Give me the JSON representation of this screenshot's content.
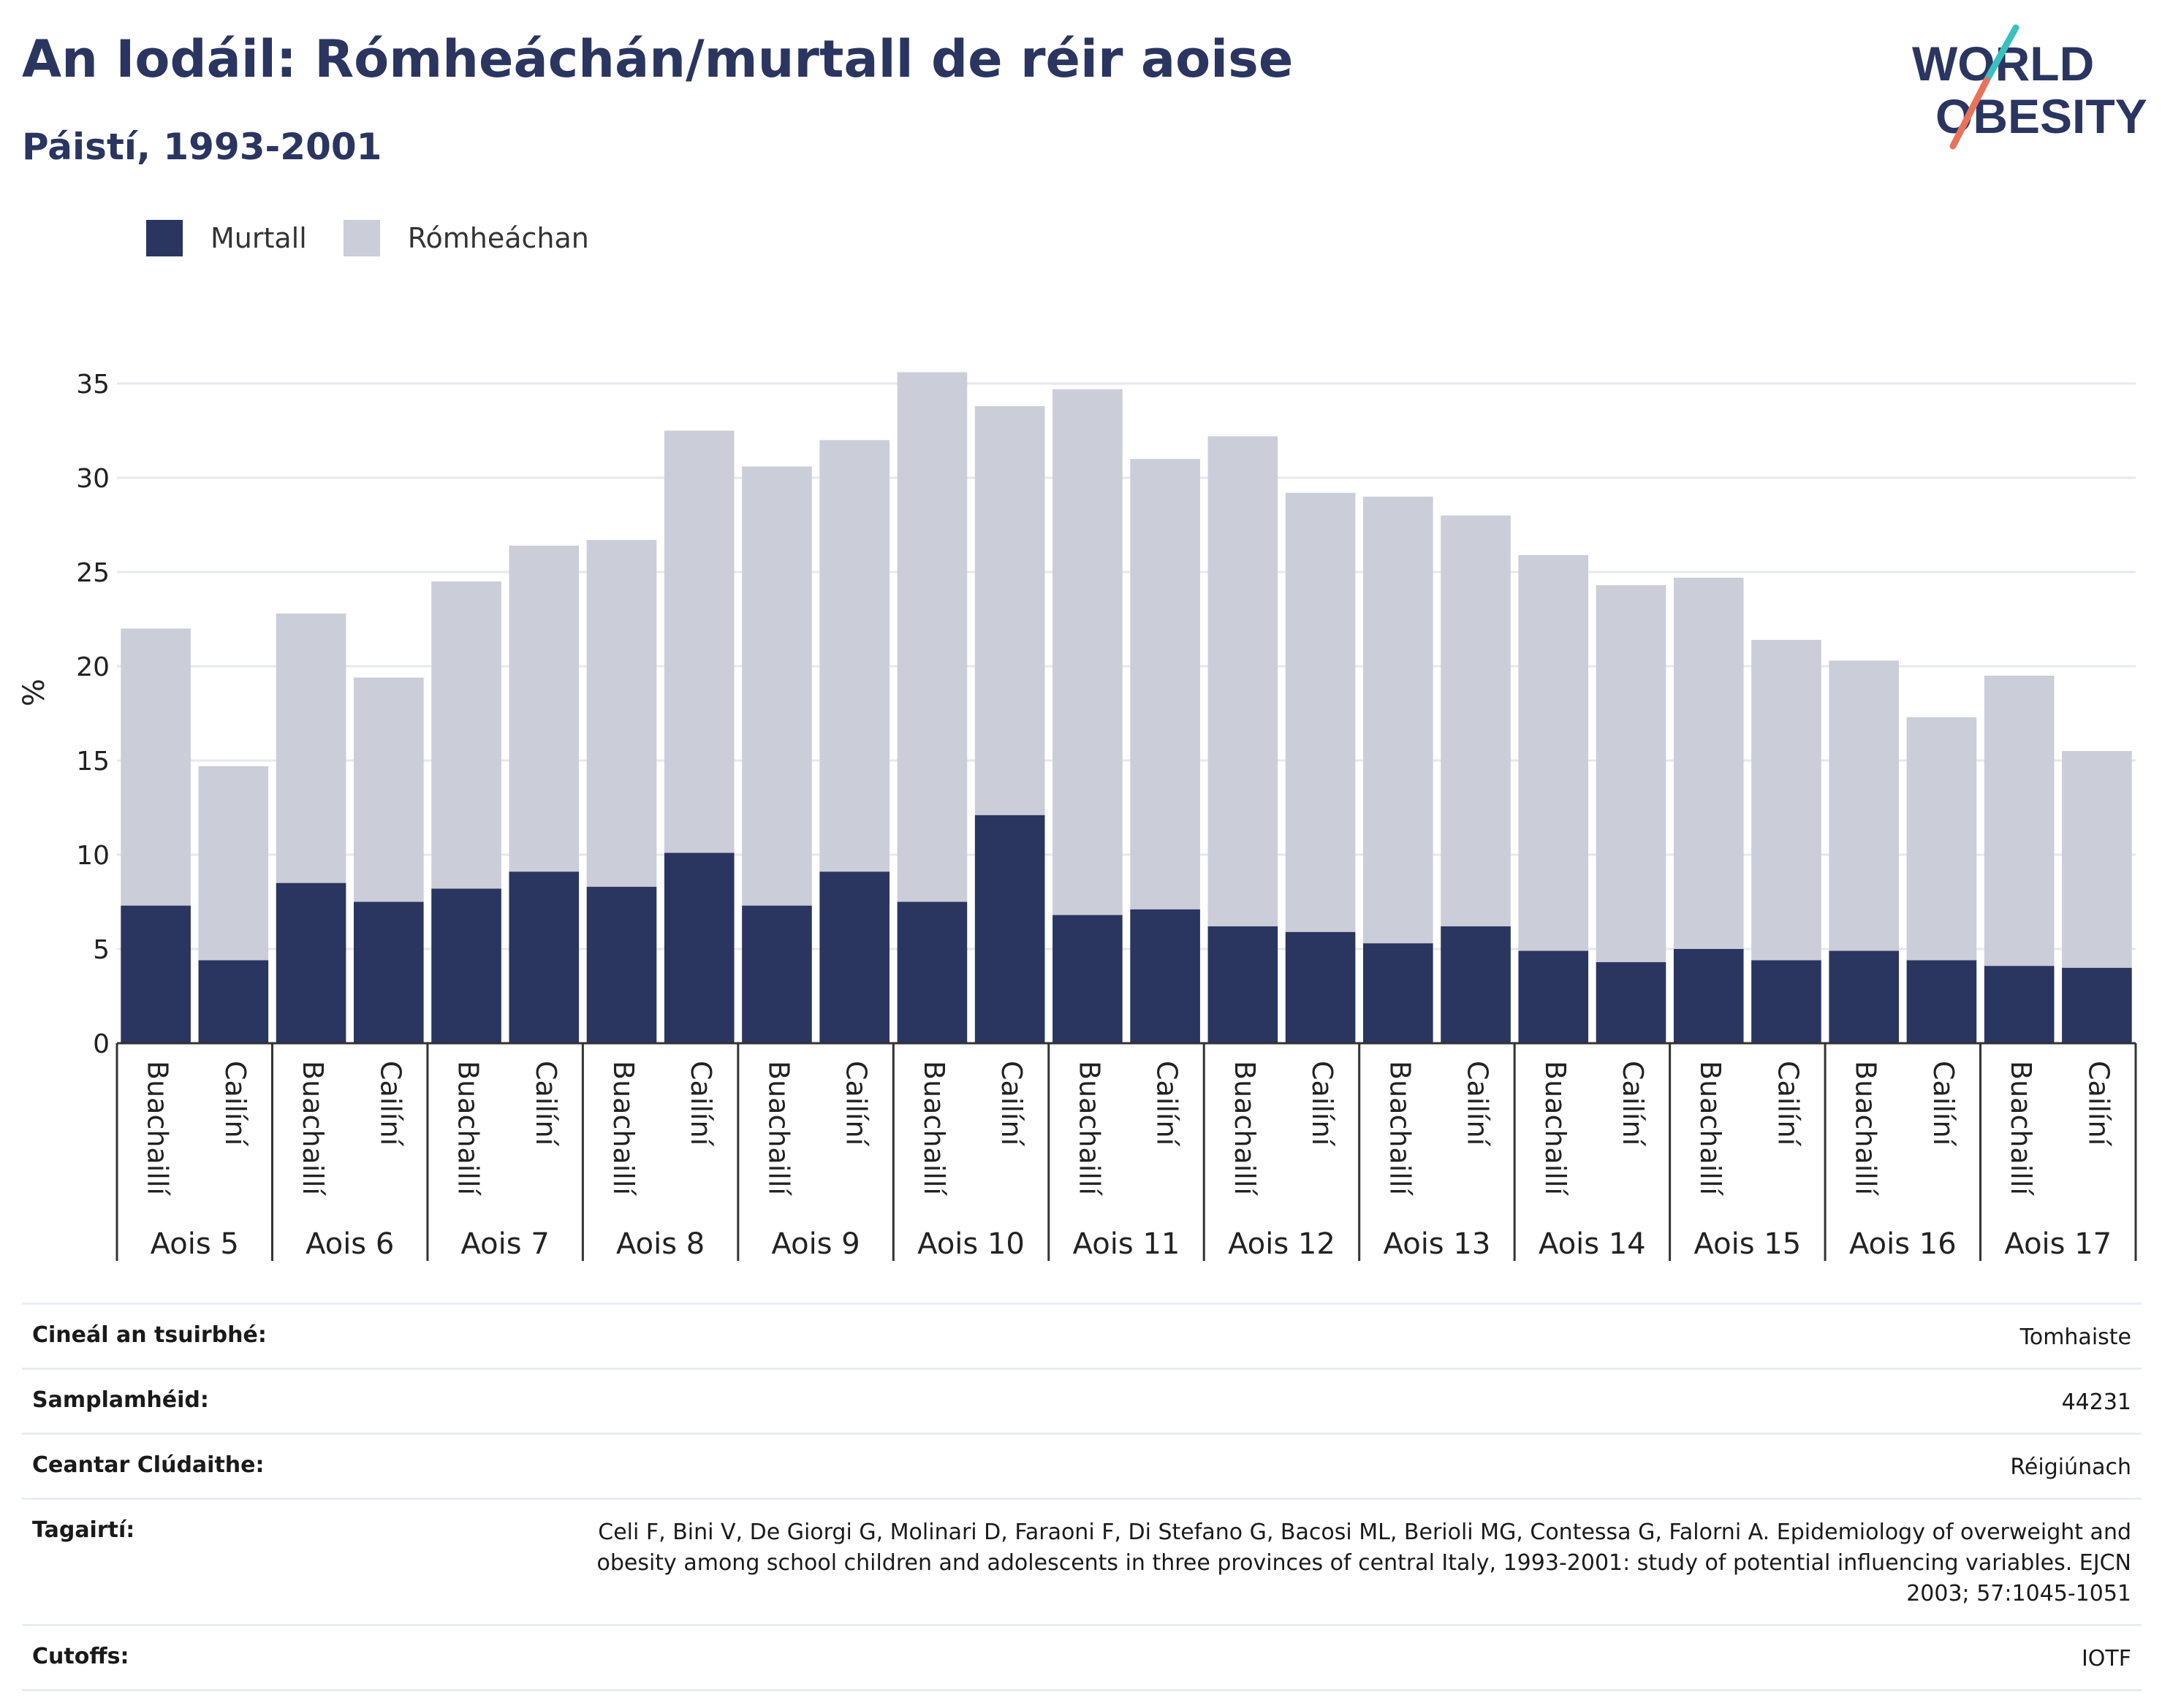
{
  "header": {
    "title": "An Iodáil: Rómheáchán/murtall de réir aoise",
    "subtitle": "Páistí, 1993-2001"
  },
  "logo": {
    "line1": "WORLD",
    "line2": "OBESITY"
  },
  "colors": {
    "obese": "#2a3560",
    "overweight": "#cbcdd8",
    "accent_teal": "#3bbfbf",
    "accent_coral": "#e8735a"
  },
  "legend": [
    {
      "label": "Murtall",
      "color": "#2a3560"
    },
    {
      "label": "Rómheáchan",
      "color": "#cbcdd8"
    }
  ],
  "chart_data": {
    "type": "bar",
    "stacked": true,
    "ylabel": "%",
    "ylim": [
      0,
      37
    ],
    "yticks": [
      0,
      5,
      10,
      15,
      20,
      25,
      30,
      35
    ],
    "grid": true,
    "legend_position": "top-left",
    "groups": [
      "Aois 5",
      "Aois 6",
      "Aois 7",
      "Aois 8",
      "Aois 9",
      "Aois 10",
      "Aois 11",
      "Aois 12",
      "Aois 13",
      "Aois 14",
      "Aois 15",
      "Aois 16",
      "Aois 17"
    ],
    "subcategories": [
      "Buachaillí",
      "Cailíní"
    ],
    "series": [
      {
        "name": "Murtall",
        "values": [
          7.3,
          4.4,
          8.5,
          7.5,
          8.2,
          9.1,
          8.3,
          10.1,
          7.3,
          9.1,
          7.5,
          12.1,
          6.8,
          7.1,
          6.2,
          5.9,
          5.3,
          6.2,
          4.9,
          4.3,
          5.0,
          4.4,
          4.9,
          4.4,
          4.1,
          4.0
        ]
      },
      {
        "name": "Rómheáchan",
        "values": [
          14.7,
          10.3,
          14.3,
          11.9,
          16.3,
          17.3,
          18.4,
          22.4,
          23.3,
          22.9,
          28.1,
          21.7,
          27.9,
          23.9,
          26.0,
          23.3,
          23.7,
          21.8,
          21.0,
          20.0,
          19.7,
          17.0,
          15.4,
          12.9,
          15.4,
          11.5
        ]
      }
    ]
  },
  "info": [
    {
      "label": "Cineál an tsuirbhé:",
      "value": "Tomhaiste"
    },
    {
      "label": "Samplamhéid:",
      "value": "44231"
    },
    {
      "label": "Ceantar Clúdaithe:",
      "value": "Réigiúnach"
    },
    {
      "label": "Tagairtí:",
      "value": "Celi F, Bini V, De Giorgi G, Molinari D, Faraoni F, Di Stefano G, Bacosi ML, Berioli MG, Contessa G, Falorni A. Epidemiology of overweight and obesity among school children and adolescents in three provinces of central Italy, 1993-2001: study of potential influencing variables. EJCN 2003; 57:1045-1051"
    },
    {
      "label": "Cutoffs:",
      "value": "IOTF"
    }
  ]
}
